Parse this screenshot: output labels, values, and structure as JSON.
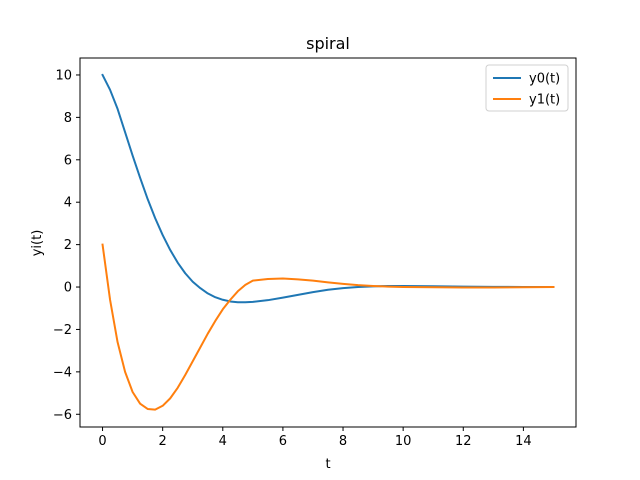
{
  "chart_data": {
    "type": "line",
    "title": "spiral",
    "xlabel": "t",
    "ylabel": "yi(t)",
    "xlim": [
      -0.75,
      15.75
    ],
    "ylim": [
      -6.6,
      10.8
    ],
    "xticks": [
      0,
      2,
      4,
      6,
      8,
      10,
      12,
      14
    ],
    "yticks": [
      -6,
      -4,
      -2,
      0,
      2,
      4,
      6,
      8,
      10
    ],
    "grid": false,
    "legend_position": "top-right",
    "x": [
      0,
      0.25,
      0.5,
      0.75,
      1,
      1.25,
      1.5,
      1.75,
      2,
      2.25,
      2.5,
      2.75,
      3,
      3.25,
      3.5,
      3.75,
      4,
      4.25,
      4.5,
      4.75,
      5,
      5.5,
      6,
      6.5,
      7,
      7.5,
      8,
      8.5,
      9,
      9.5,
      10,
      11,
      12,
      13,
      14,
      15
    ],
    "series": [
      {
        "name": "y0(t)",
        "color": "#1f77b4",
        "values": [
          10.0,
          9.3,
          8.4,
          7.3,
          6.2,
          5.15,
          4.15,
          3.25,
          2.45,
          1.75,
          1.15,
          0.65,
          0.25,
          -0.05,
          -0.3,
          -0.48,
          -0.6,
          -0.68,
          -0.72,
          -0.72,
          -0.7,
          -0.62,
          -0.5,
          -0.37,
          -0.24,
          -0.13,
          -0.05,
          0.0,
          0.03,
          0.05,
          0.05,
          0.04,
          0.02,
          0.01,
          0.0,
          0.0
        ]
      },
      {
        "name": "y1(t)",
        "color": "#ff7f0e",
        "values": [
          2.0,
          -0.6,
          -2.6,
          -4.0,
          -4.95,
          -5.5,
          -5.75,
          -5.78,
          -5.6,
          -5.25,
          -4.75,
          -4.15,
          -3.5,
          -2.85,
          -2.2,
          -1.6,
          -1.05,
          -0.6,
          -0.2,
          0.1,
          0.3,
          0.38,
          0.4,
          0.36,
          0.3,
          0.22,
          0.15,
          0.09,
          0.05,
          0.02,
          0.0,
          -0.01,
          -0.02,
          -0.02,
          -0.01,
          0.0
        ]
      }
    ]
  }
}
